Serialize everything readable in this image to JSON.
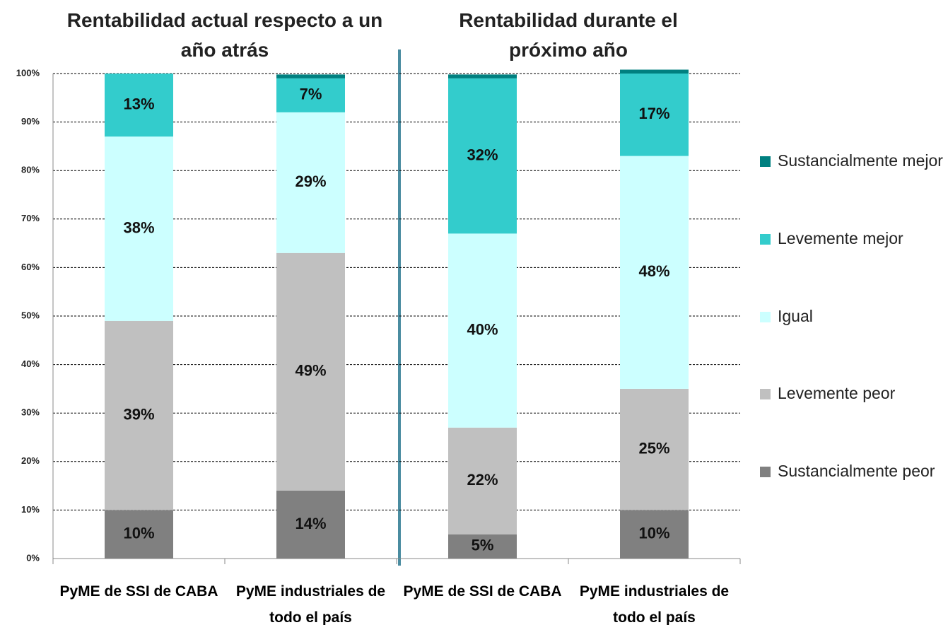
{
  "chart_data": {
    "type": "stacked_bar",
    "groups": [
      {
        "title": "Rentabilidad actual respecto a un año atrás"
      },
      {
        "title": "Rentabilidad durante el próximo año"
      }
    ],
    "categories": [
      "PyME de SSI de CABA",
      "PyME industriales de todo el país",
      "PyME de SSI de CABA",
      "PyME industriales de todo el país"
    ],
    "series": [
      {
        "name": "Sustancialmente peor",
        "color": "#808080",
        "values": [
          10,
          14,
          5,
          10
        ],
        "value_labels": [
          "10%",
          "14%",
          "5%",
          "10%"
        ]
      },
      {
        "name": "Levemente peor",
        "color": "#c0c0c0",
        "values": [
          39,
          49,
          22,
          25
        ],
        "value_labels": [
          "39%",
          "49%",
          "22%",
          "25%"
        ]
      },
      {
        "name": "Igual",
        "color": "#ccffff",
        "values": [
          38,
          29,
          40,
          48
        ],
        "value_labels": [
          "38%",
          "29%",
          "40%",
          "48%"
        ]
      },
      {
        "name": "Levemente mejor",
        "color": "#33cccc",
        "values": [
          13,
          7,
          32,
          17
        ],
        "value_labels": [
          "13%",
          "7%",
          "32%",
          "17%"
        ]
      },
      {
        "name": "Sustancialmente mejor",
        "color": "#008080",
        "values": [
          0,
          0.8,
          0.8,
          0.8
        ],
        "value_labels": [
          null,
          null,
          null,
          null
        ]
      }
    ],
    "ylim": [
      0,
      100
    ],
    "yticks": [
      {
        "value": 0,
        "label": "0%"
      },
      {
        "value": 10,
        "label": "10%"
      },
      {
        "value": 20,
        "label": "20%"
      },
      {
        "value": 30,
        "label": "30%"
      },
      {
        "value": 40,
        "label": "40%"
      },
      {
        "value": 50,
        "label": "50%"
      },
      {
        "value": 60,
        "label": "60%"
      },
      {
        "value": 70,
        "label": "70%"
      },
      {
        "value": 80,
        "label": "80%"
      },
      {
        "value": 90,
        "label": "90%"
      },
      {
        "value": 100,
        "label": "100%"
      }
    ],
    "grid": true,
    "legend": "right"
  }
}
